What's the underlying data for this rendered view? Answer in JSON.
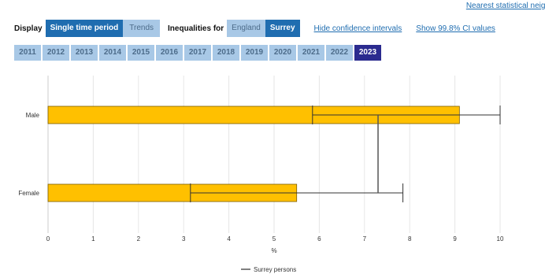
{
  "header": {
    "nearest_link": "Nearest statistical neigh",
    "display_label": "Display",
    "display_buttons": [
      "Single time period",
      "Trends"
    ],
    "inequalities_label": "Inequalities for",
    "inequalities_buttons": [
      "England",
      "Surrey"
    ],
    "ci_link": "Hide confidence intervals",
    "ci998_link": "Show 99.8% CI values"
  },
  "years": [
    "2011",
    "2012",
    "2013",
    "2014",
    "2015",
    "2016",
    "2017",
    "2018",
    "2019",
    "2020",
    "2021",
    "2022",
    "2023"
  ],
  "selected_year": "2023",
  "colors": {
    "bar": "#ffc000",
    "active": "#1f6db0",
    "inactive": "#a8c8e6",
    "year_selected": "#2b2b8f"
  },
  "chart_data": {
    "type": "bar",
    "orientation": "horizontal",
    "categories": [
      "Male",
      "Female"
    ],
    "values": [
      9.1,
      5.5
    ],
    "ci_lower": [
      5.85,
      3.15
    ],
    "ci_upper": [
      10.0,
      7.85
    ],
    "reference_line": {
      "name": "Surrey persons",
      "value": 7.3
    },
    "xlabel": "%",
    "xticks": [
      0,
      1,
      2,
      3,
      4,
      5,
      6,
      7,
      8,
      9,
      10
    ],
    "xlim": [
      0,
      10
    ],
    "grid": true,
    "legend": "bottom-center"
  }
}
